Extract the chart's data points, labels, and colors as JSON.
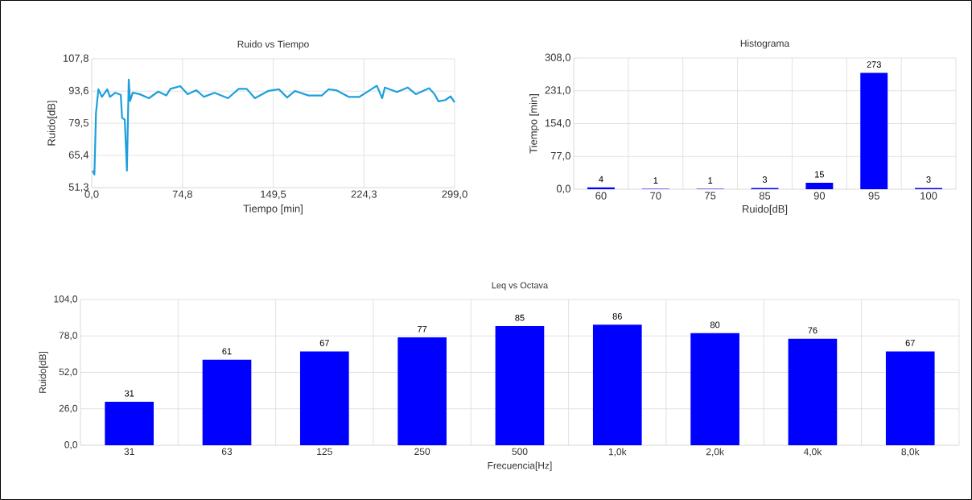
{
  "chart_data": [
    {
      "type": "line",
      "title": "Ruido vs Tiempo",
      "xlabel": "Tiempo [min]",
      "ylabel": "Ruido[dB]",
      "grid": true,
      "xlim": [
        0,
        299
      ],
      "ylim": [
        51.3,
        107.8
      ],
      "xticks": [
        {
          "value": 0,
          "label": "0,0"
        },
        {
          "value": 74.8,
          "label": "74,8"
        },
        {
          "value": 149.5,
          "label": "149,5"
        },
        {
          "value": 224.3,
          "label": "224,3"
        },
        {
          "value": 299,
          "label": "299,0"
        }
      ],
      "yticks": [
        {
          "value": 51.3,
          "label": "51,3"
        },
        {
          "value": 65.4,
          "label": "65,4"
        },
        {
          "value": 79.5,
          "label": "79,5"
        },
        {
          "value": 93.6,
          "label": "93,6"
        },
        {
          "value": 107.8,
          "label": "107,8"
        }
      ],
      "x": [
        0.7,
        2.2,
        3.5,
        5.5,
        8.4,
        12.8,
        15,
        19.4,
        23.9,
        25,
        27.2,
        29,
        30.5,
        31.6,
        33.8,
        39.3,
        47.1,
        54.8,
        61.4,
        64.8,
        72.9,
        79.1,
        86.2,
        92.4,
        101.2,
        112.3,
        121.1,
        127.7,
        134.4,
        145.4,
        154.3,
        161.0,
        167.5,
        178.6,
        189.6,
        195.1,
        201.4,
        211.7,
        220.6,
        228.3,
        234.9,
        239.3,
        241.5,
        251.5,
        260.3,
        267.0,
        278.0,
        282.4,
        285.7,
        291.3,
        295.7,
        299.0
      ],
      "values": [
        58.7,
        57.0,
        84.0,
        94.4,
        91.1,
        94.4,
        91.1,
        92.9,
        92.0,
        81.9,
        81.1,
        58.7,
        98.7,
        89.3,
        92.9,
        92.3,
        90.5,
        93.4,
        91.7,
        94.6,
        95.8,
        92.3,
        94.0,
        91.1,
        92.9,
        90.5,
        94.6,
        94.6,
        90.5,
        93.7,
        94.4,
        90.8,
        93.7,
        91.7,
        91.7,
        94.4,
        94.0,
        91.1,
        91.1,
        93.7,
        96.0,
        90.5,
        95.2,
        93.2,
        95.2,
        92.3,
        94.9,
        92.3,
        89.1,
        89.7,
        91.3,
        88.7
      ],
      "color": "#1e9fdc"
    },
    {
      "type": "bar",
      "title": "Histograma",
      "xlabel": "Ruido[dB]",
      "ylabel": "Tiempo [min]",
      "grid": true,
      "data_labels": true,
      "categories": [
        "60",
        "70",
        "75",
        "85",
        "90",
        "95",
        "100"
      ],
      "values": [
        4,
        1,
        1,
        3,
        15,
        273,
        3
      ],
      "color": "#0000ff",
      "ylim": [
        0,
        308
      ],
      "yticks": [
        {
          "value": 0,
          "label": "0,0"
        },
        {
          "value": 77,
          "label": "77,0"
        },
        {
          "value": 154,
          "label": "154,0"
        },
        {
          "value": 231,
          "label": "231,0"
        },
        {
          "value": 308,
          "label": "308,0"
        }
      ]
    },
    {
      "type": "bar",
      "title": "Leq vs Octava",
      "xlabel": "Frecuencia[Hz]",
      "ylabel": "Ruido[dB]",
      "grid": true,
      "data_labels": true,
      "categories": [
        "31",
        "63",
        "125",
        "250",
        "500",
        "1,0k",
        "2,0k",
        "4,0k",
        "8,0k"
      ],
      "values": [
        31,
        61,
        67,
        77,
        85,
        86,
        80,
        76,
        67
      ],
      "color": "#0000ff",
      "ylim": [
        0,
        104
      ],
      "yticks": [
        {
          "value": 0,
          "label": "0,0"
        },
        {
          "value": 26,
          "label": "26,0"
        },
        {
          "value": 52,
          "label": "52,0"
        },
        {
          "value": 78,
          "label": "78,0"
        },
        {
          "value": 104,
          "label": "104,0"
        }
      ]
    }
  ]
}
